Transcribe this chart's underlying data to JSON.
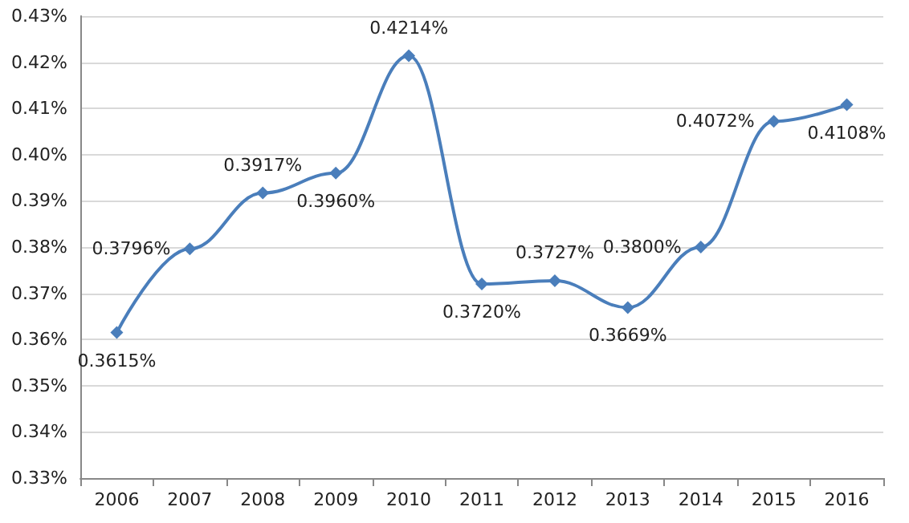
{
  "chart_data": {
    "type": "line",
    "categories": [
      "2006",
      "2007",
      "2008",
      "2009",
      "2010",
      "2011",
      "2012",
      "2013",
      "2014",
      "2015",
      "2016"
    ],
    "series": [
      {
        "color": "#4a7ebb",
        "values": [
          0.3615,
          0.3796,
          0.3917,
          0.396,
          0.4214,
          0.372,
          0.3727,
          0.3669,
          0.38,
          0.4072,
          0.4108
        ],
        "value_labels": [
          "0.3615%",
          "0.3796%",
          "0.3917%",
          "0.3960%",
          "0.4214%",
          "0.3720%",
          "0.3727%",
          "0.3669%",
          "0.3800%",
          "0.4072%",
          "0.4108%"
        ]
      }
    ],
    "ylim": [
      0.33,
      0.43
    ],
    "yticks": [
      {
        "value": 0.33,
        "label": "0.33%"
      },
      {
        "value": 0.34,
        "label": "0.34%"
      },
      {
        "value": 0.35,
        "label": "0.35%"
      },
      {
        "value": 0.36,
        "label": "0.36%"
      },
      {
        "value": 0.37,
        "label": "0.37%"
      },
      {
        "value": 0.38,
        "label": "0.38%"
      },
      {
        "value": 0.39,
        "label": "0.39%"
      },
      {
        "value": 0.4,
        "label": "0.40%"
      },
      {
        "value": 0.41,
        "label": "0.41%"
      },
      {
        "value": 0.42,
        "label": "0.42%"
      },
      {
        "value": 0.43,
        "label": "0.43%"
      }
    ],
    "grid": "y",
    "marker": "diamond",
    "line_style": "solid"
  }
}
